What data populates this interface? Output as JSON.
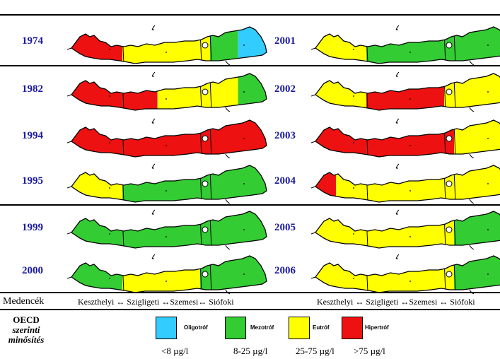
{
  "colors": {
    "oligotrof": "#33ccff",
    "mezotrof": "#33cc33",
    "eutrof": "#ffff00",
    "hipertrof": "#ee1111",
    "year_text": "#1a1aa0"
  },
  "maps": [
    {
      "year": "1974",
      "basins": [
        "hipertrof",
        "eutrof",
        "eutrof",
        "mezotrof+oligotrof"
      ]
    },
    {
      "year": "1982",
      "basins": [
        "hipertrof",
        "hipertrof+eutrof",
        "eutrof",
        "eutrof+mezotrof"
      ]
    },
    {
      "year": "1994",
      "basins": [
        "hipertrof",
        "hipertrof",
        "hipertrof",
        "hipertrof"
      ]
    },
    {
      "year": "1995",
      "basins": [
        "eutrof",
        "mezotrof",
        "mezotrof",
        "mezotrof"
      ]
    },
    {
      "year": "1999",
      "basins": [
        "mezotrof",
        "mezotrof",
        "mezotrof",
        "mezotrof"
      ]
    },
    {
      "year": "2000",
      "basins": [
        "mezotrof",
        "eutrof",
        "mezotrof",
        "mezotrof"
      ]
    },
    {
      "year": "2001",
      "basins": [
        "eutrof",
        "mezotrof",
        "mezotrof",
        "mezotrof"
      ]
    },
    {
      "year": "2002",
      "basins": [
        "eutrof",
        "hipertrof",
        "eutrof",
        "eutrof"
      ]
    },
    {
      "year": "2003",
      "basins": [
        "hipertrof",
        "hipertrof",
        "hipertrof",
        "eutrof"
      ]
    },
    {
      "year": "2004",
      "basins": [
        "hipertrof+eutrof",
        "eutrof",
        "eutrof",
        "eutrof"
      ]
    },
    {
      "year": "2005",
      "basins": [
        "eutrof",
        "eutrof",
        "eutrof",
        "mezotrof"
      ]
    },
    {
      "year": "2006",
      "basins": [
        "eutrof",
        "eutrof",
        "eutrof",
        "mezotrof"
      ]
    }
  ],
  "basins_row": {
    "label": "Medencék",
    "left": "Keszthelyi ↔ Szigligeti ↔Szemesi↔  Siófoki",
    "right": "Keszthelyi ↔ Szigligeti ↔Szemesi ↔  Siófoki"
  },
  "legend": {
    "title_line1": "OECD",
    "title_line2": "szerinti",
    "title_line3": "minősítés",
    "items": [
      {
        "key": "oligotrof",
        "label": "Oligotróf",
        "range": "<8 µg/l"
      },
      {
        "key": "mezotrof",
        "label": "Mezotróf",
        "range": "8-25 µg/l"
      },
      {
        "key": "eutrof",
        "label": "Eutróf",
        "range": "25-75 µg/l"
      },
      {
        "key": "hipertrof",
        "label": "Hipertróf",
        "range": ">75 µg/l"
      }
    ]
  }
}
